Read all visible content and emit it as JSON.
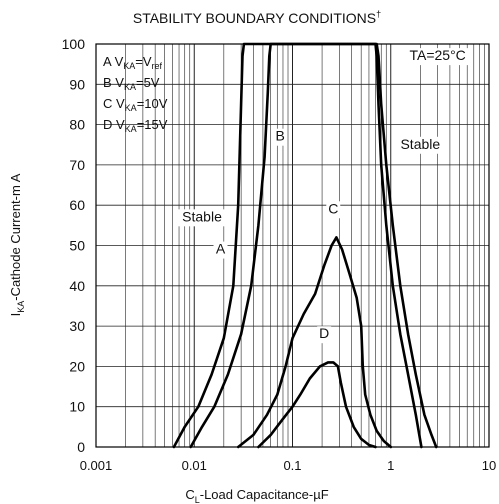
{
  "chart_data": {
    "type": "line",
    "title": "STABILITY BOUNDARY CONDITIONS",
    "title_mark": "†",
    "xlabel": {
      "main": "C",
      "sub": "L",
      "rest": "-Load Capacitance-µF"
    },
    "ylabel": {
      "main": "I",
      "sub": "KA",
      "rest": "-Cathode Current-m A"
    },
    "x_scale": "log",
    "xlim": [
      0.001,
      10
    ],
    "ylim": [
      0,
      100
    ],
    "x_ticks": [
      0.001,
      0.01,
      0.1,
      1,
      10
    ],
    "x_tick_labels": [
      "0.001",
      "0.01",
      "0.1",
      "1",
      "10"
    ],
    "y_ticks": [
      0,
      10,
      20,
      30,
      40,
      50,
      60,
      70,
      80,
      90,
      100
    ],
    "y_tick_labels": [
      "0",
      "10",
      "20",
      "30",
      "40",
      "50",
      "60",
      "70",
      "80",
      "90",
      "100"
    ],
    "grid": true,
    "legend": {
      "placement": "top-left",
      "entries": [
        {
          "letter": "A",
          "pre": "V",
          "sub": "KA",
          "eq": "=V",
          "sub2": "ref",
          "post": ""
        },
        {
          "letter": "B",
          "pre": "V",
          "sub": "KA",
          "eq": "=5V",
          "sub2": "",
          "post": ""
        },
        {
          "letter": "C",
          "pre": "V",
          "sub": "KA",
          "eq": "=10V",
          "sub2": "",
          "post": ""
        },
        {
          "letter": "D",
          "pre": "V",
          "sub": "KA",
          "eq": "=15V",
          "sub2": "",
          "post": ""
        }
      ]
    },
    "annotations": [
      {
        "text": "TA=25°C",
        "x": 3.0,
        "y": 96,
        "anchor": "middle"
      },
      {
        "text": "Stable",
        "x": 2.0,
        "y": 74,
        "anchor": "middle"
      },
      {
        "text": "Stable",
        "x": 0.012,
        "y": 56,
        "anchor": "middle"
      },
      {
        "text": "A",
        "x": 0.0185,
        "y": 48,
        "anchor": "middle"
      },
      {
        "text": "B",
        "x": 0.075,
        "y": 76,
        "anchor": "middle"
      },
      {
        "text": "C",
        "x": 0.26,
        "y": 58,
        "anchor": "middle"
      },
      {
        "text": "D",
        "x": 0.21,
        "y": 27,
        "anchor": "middle"
      }
    ],
    "series": [
      {
        "label": "A",
        "color": "#000000",
        "x": [
          0.0062,
          0.008,
          0.011,
          0.015,
          0.02,
          0.025,
          0.028,
          0.03,
          0.031,
          0.032,
          0.034,
          0.036,
          0.038,
          0.04,
          0.045,
          0.05,
          0.06,
          0.07,
          0.08,
          0.1,
          0.13,
          0.16,
          0.2,
          0.25,
          0.3,
          0.4,
          0.5,
          0.6,
          0.65,
          0.68,
          0.7,
          0.72,
          0.75,
          0.8,
          0.9,
          1.05,
          1.25,
          1.5,
          1.8,
          2.05
        ],
        "y": [
          0,
          5,
          10,
          18,
          27,
          40,
          60,
          85,
          97,
          100,
          100,
          100,
          100,
          100,
          100,
          100,
          100,
          100,
          100,
          100,
          100,
          100,
          100,
          100,
          100,
          100,
          100,
          100,
          100,
          100,
          100,
          97,
          85,
          70,
          55,
          40,
          28,
          18,
          8,
          0
        ]
      },
      {
        "label": "B",
        "color": "#000000",
        "x": [
          0.0092,
          0.012,
          0.016,
          0.022,
          0.03,
          0.038,
          0.045,
          0.052,
          0.056,
          0.058,
          0.06,
          0.1,
          0.2,
          0.3,
          0.4,
          0.5,
          0.6,
          0.65,
          0.68,
          0.7,
          0.72,
          0.75,
          0.8,
          0.9,
          1.05,
          1.25,
          1.5,
          1.8,
          2.2,
          2.6,
          2.9
        ],
        "y": [
          0,
          5,
          10,
          18,
          28,
          40,
          55,
          72,
          88,
          97,
          100,
          100,
          100,
          100,
          100,
          100,
          100,
          100,
          100,
          100,
          100,
          97,
          85,
          70,
          55,
          40,
          28,
          18,
          8,
          3,
          0
        ]
      },
      {
        "label": "C",
        "color": "#000000",
        "x": [
          0.028,
          0.04,
          0.055,
          0.07,
          0.085,
          0.1,
          0.13,
          0.17,
          0.21,
          0.25,
          0.28,
          0.32,
          0.38,
          0.45,
          0.5,
          0.52,
          0.55,
          0.62,
          0.72,
          0.85,
          1.0
        ],
        "y": [
          0,
          3,
          8,
          13,
          20,
          27,
          33,
          38,
          45,
          50,
          52,
          49,
          43,
          37,
          30,
          20,
          13,
          8,
          4,
          1.5,
          0
        ]
      },
      {
        "label": "D",
        "color": "#000000",
        "x": [
          0.045,
          0.06,
          0.08,
          0.1,
          0.12,
          0.15,
          0.19,
          0.23,
          0.26,
          0.29,
          0.31,
          0.35,
          0.42,
          0.5,
          0.6,
          0.7
        ],
        "y": [
          0,
          3,
          7,
          10,
          13,
          17,
          20,
          21,
          21,
          20,
          16,
          10,
          5,
          2,
          0.5,
          0
        ]
      }
    ]
  }
}
